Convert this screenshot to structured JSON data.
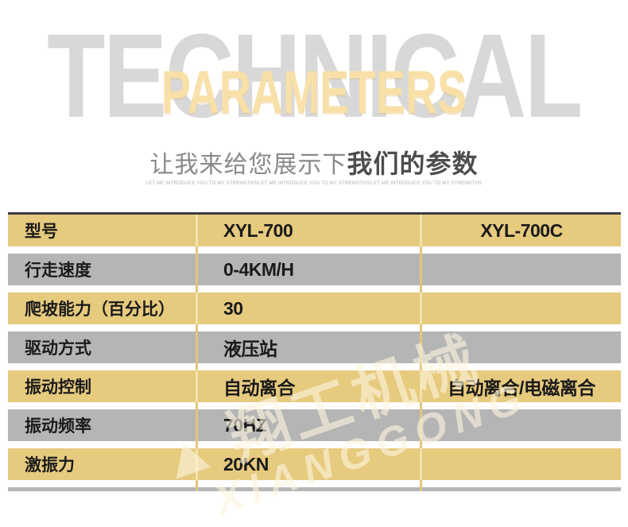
{
  "hero": {
    "watermark_word": "TECHNICAL",
    "highlight_word": "PARAMETERS",
    "subtitle_prefix": "让我来给您展示下",
    "subtitle_emphasis": "我们的参数",
    "subtitle_english": "LET ME INTRODUCE YOU TO MY STRENGTHS!LET ME INTRODUCE YOU TO MY STRENGTHS!LET ME INTRODUCE YOU TO MY STRENGTHS"
  },
  "colors": {
    "headline_gray": "#D8D8D8",
    "highlight_gold": "#F8E0A8",
    "row_gold": "#E6CA7E",
    "row_gray": "#B5B5B5",
    "separator_gold": "#E2C67C",
    "separator_cream": "#F2E2AC",
    "top_border": "#3C3C3C",
    "table_text": "#1A1A1A"
  },
  "table": {
    "rows": [
      {
        "tone": "gold",
        "cells": [
          "型号",
          "XYL-700",
          "XYL-700C"
        ]
      },
      {
        "tone": "gray",
        "cells": [
          "行走速度",
          "0-4KM/H",
          ""
        ]
      },
      {
        "tone": "gold",
        "cells": [
          "爬坡能力（百分比）",
          "30",
          ""
        ]
      },
      {
        "tone": "gray",
        "cells": [
          "驱动方式",
          "液压站",
          ""
        ]
      },
      {
        "tone": "gold",
        "cells": [
          "振动控制",
          "自动离合",
          "自动离合/电磁离合"
        ]
      },
      {
        "tone": "gray",
        "cells": [
          "振动频率",
          "70HZ",
          ""
        ]
      },
      {
        "tone": "gold",
        "cells": [
          "激振力",
          "20KN",
          ""
        ]
      },
      {
        "tone": "gray",
        "cells": [
          "",
          "",
          ""
        ]
      }
    ]
  },
  "watermark": {
    "line1": "翔工机械",
    "line2": "XIANGGONG"
  }
}
